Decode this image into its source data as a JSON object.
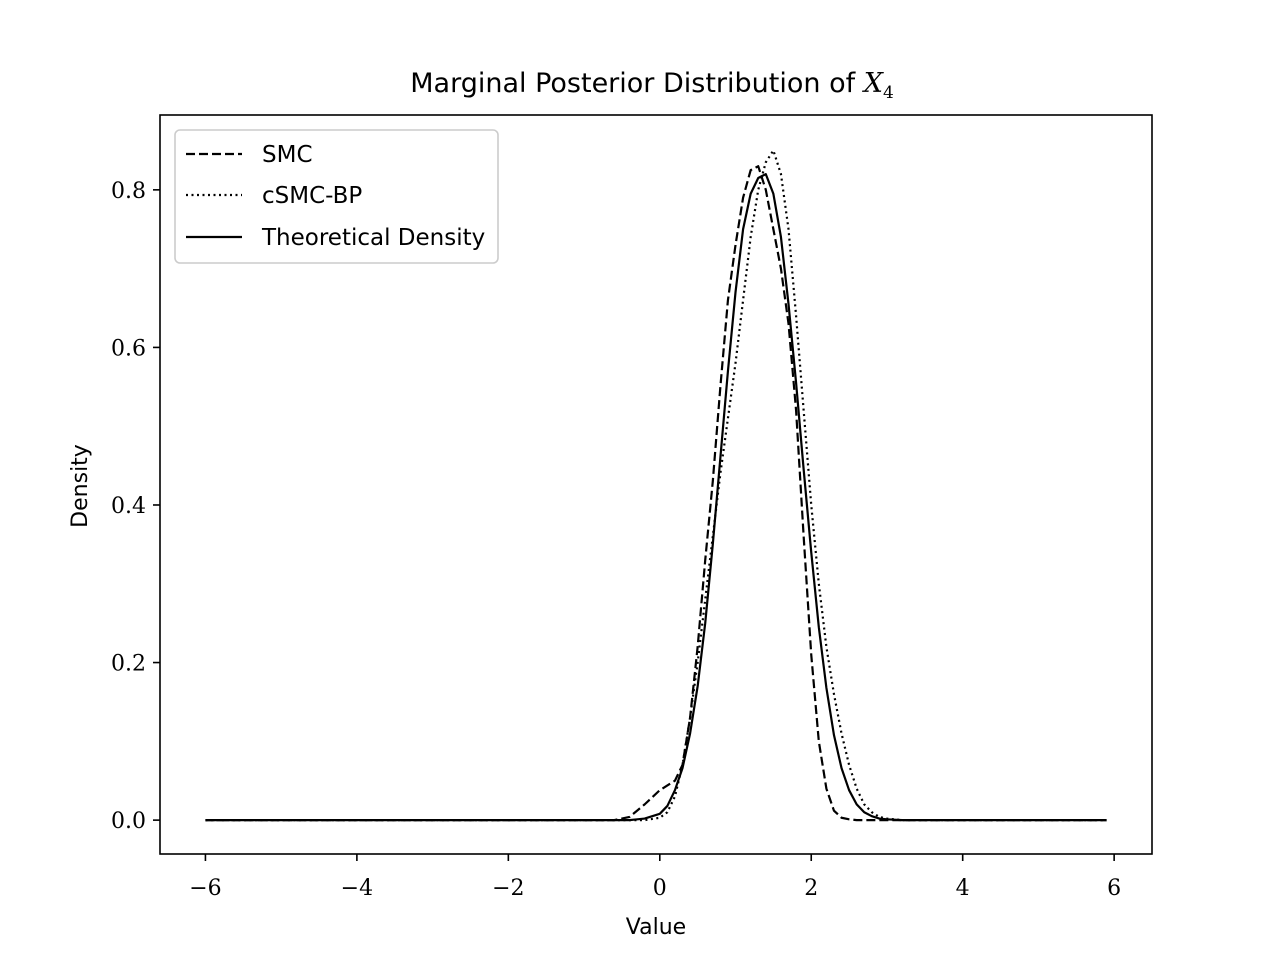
{
  "chart_data": {
    "type": "line",
    "title": "Marginal Posterior Distribution of ",
    "title_math": "X",
    "title_math_sub": "4",
    "xlabel": "Value",
    "ylabel": "Density",
    "xlim": [
      -6.6,
      6.5
    ],
    "ylim": [
      -0.043,
      0.895
    ],
    "xticks": [
      -6,
      -4,
      -2,
      0,
      2,
      4,
      6
    ],
    "xtick_labels": [
      "−6",
      "−4",
      "−2",
      "0",
      "2",
      "4",
      "6"
    ],
    "yticks": [
      0.0,
      0.2,
      0.4,
      0.6,
      0.8
    ],
    "ytick_labels": [
      "0.0",
      "0.2",
      "0.4",
      "0.6",
      "0.8"
    ],
    "grid": false,
    "legend_position": "top-left",
    "series": [
      {
        "name": "SMC",
        "dash": "dashed",
        "color": "#000000",
        "x": [
          -6.0,
          -1.0,
          -0.6,
          -0.4,
          -0.2,
          0.0,
          0.2,
          0.3,
          0.4,
          0.5,
          0.6,
          0.7,
          0.8,
          0.9,
          1.0,
          1.1,
          1.2,
          1.3,
          1.4,
          1.5,
          1.6,
          1.7,
          1.8,
          1.9,
          2.0,
          2.1,
          2.2,
          2.3,
          2.4,
          2.5,
          2.6,
          3.0,
          5.9
        ],
        "y": [
          0.0,
          0.0,
          0.0,
          0.004,
          0.02,
          0.038,
          0.05,
          0.07,
          0.13,
          0.22,
          0.33,
          0.43,
          0.55,
          0.66,
          0.73,
          0.79,
          0.825,
          0.83,
          0.8,
          0.75,
          0.7,
          0.63,
          0.52,
          0.36,
          0.21,
          0.1,
          0.04,
          0.012,
          0.003,
          0.001,
          0.0,
          0.0,
          0.0
        ]
      },
      {
        "name": "cSMC-BP",
        "dash": "dotted",
        "color": "#000000",
        "x": [
          -6.0,
          -1.0,
          -0.2,
          0.0,
          0.1,
          0.2,
          0.3,
          0.4,
          0.5,
          0.6,
          0.7,
          0.8,
          0.9,
          1.0,
          1.1,
          1.2,
          1.3,
          1.4,
          1.5,
          1.6,
          1.7,
          1.8,
          1.9,
          2.0,
          2.1,
          2.2,
          2.3,
          2.4,
          2.5,
          2.6,
          2.7,
          2.8,
          2.9,
          3.0,
          3.2,
          3.4,
          5.9
        ],
        "y": [
          0.0,
          0.0,
          0.0,
          0.003,
          0.01,
          0.03,
          0.07,
          0.13,
          0.2,
          0.28,
          0.36,
          0.44,
          0.51,
          0.58,
          0.66,
          0.74,
          0.8,
          0.835,
          0.85,
          0.82,
          0.75,
          0.64,
          0.52,
          0.4,
          0.3,
          0.22,
          0.16,
          0.11,
          0.07,
          0.04,
          0.02,
          0.01,
          0.004,
          0.002,
          0.0,
          0.0,
          0.0
        ]
      },
      {
        "name": "Theoretical Density",
        "dash": "solid",
        "color": "#000000",
        "x": [
          -6.0,
          -1.0,
          -0.4,
          -0.2,
          0.0,
          0.1,
          0.2,
          0.3,
          0.4,
          0.5,
          0.6,
          0.7,
          0.8,
          0.9,
          1.0,
          1.1,
          1.2,
          1.3,
          1.4,
          1.5,
          1.6,
          1.7,
          1.8,
          1.9,
          2.0,
          2.1,
          2.2,
          2.3,
          2.4,
          2.5,
          2.6,
          2.7,
          2.8,
          2.9,
          3.0,
          3.2,
          3.4,
          5.9
        ],
        "y": [
          0.0,
          0.0,
          0.0,
          0.002,
          0.008,
          0.018,
          0.038,
          0.066,
          0.11,
          0.17,
          0.25,
          0.35,
          0.46,
          0.57,
          0.67,
          0.75,
          0.795,
          0.815,
          0.82,
          0.795,
          0.74,
          0.655,
          0.555,
          0.445,
          0.34,
          0.245,
          0.168,
          0.108,
          0.066,
          0.038,
          0.02,
          0.01,
          0.005,
          0.002,
          0.001,
          0.0,
          0.0,
          0.0
        ]
      }
    ]
  }
}
